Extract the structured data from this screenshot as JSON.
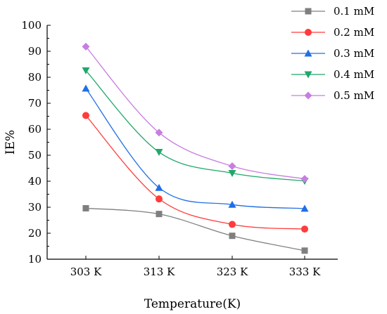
{
  "chart_data": {
    "type": "line",
    "title": "",
    "xlabel": "Temperature(K)",
    "ylabel": "IE%",
    "categories": [
      "303 K",
      "313 K",
      "323 K",
      "333 K"
    ],
    "yticks": [
      10,
      20,
      30,
      40,
      50,
      60,
      70,
      80,
      90,
      100
    ],
    "ylim": [
      10,
      100
    ],
    "grid": false,
    "legend_position": "top-right",
    "series": [
      {
        "name": "0.1 mM",
        "color": "#7f7f7f",
        "marker": "square",
        "values": [
          29.6,
          27.4,
          19.0,
          13.3
        ]
      },
      {
        "name": "0.2 mM",
        "color": "#ff3b3b",
        "marker": "circle",
        "values": [
          65.3,
          33.2,
          23.4,
          21.6
        ]
      },
      {
        "name": "0.3 mM",
        "color": "#1f6fe5",
        "marker": "triangle-up",
        "values": [
          75.7,
          37.5,
          31.0,
          29.5
        ]
      },
      {
        "name": "0.4 mM",
        "color": "#1fa86a",
        "marker": "triangle-down",
        "values": [
          82.6,
          51.2,
          43.1,
          40.1
        ]
      },
      {
        "name": "0.5 mM",
        "color": "#c77ee0",
        "marker": "diamond",
        "values": [
          91.8,
          58.7,
          45.8,
          40.9
        ]
      }
    ]
  }
}
